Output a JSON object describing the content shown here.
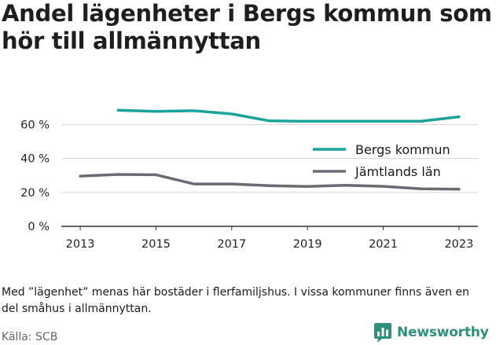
{
  "title": "Andel lägenheter i Bergs kommun som hör till allmännyttan",
  "note": "Med ”lägenhet” menas här bostäder i flerfamiljshus. I vissa kommuner finns även en del småhus i allmännyttan.",
  "source": "Källa: SCB",
  "brand": {
    "name": "Newsworthy",
    "icon": "bar-chart-logo-icon",
    "color": "#2e8f7a"
  },
  "chart_data": {
    "type": "line",
    "title": "Andel lägenheter i Bergs kommun som hör till allmännyttan",
    "xlabel": "",
    "ylabel": "",
    "xlim": [
      2012.5,
      2023.5
    ],
    "ylim": [
      0,
      70
    ],
    "x_ticks": [
      2013,
      2015,
      2017,
      2019,
      2021,
      2023
    ],
    "x_tick_labels": [
      "2013",
      "2015",
      "2017",
      "2019",
      "2021",
      "2023"
    ],
    "y_ticks": [
      0,
      20,
      40,
      60
    ],
    "y_tick_labels": [
      "0 %",
      "20 %",
      "40 %",
      "60 %"
    ],
    "grid": "horizontal",
    "legend_position": "right",
    "series": [
      {
        "name": "Bergs kommun",
        "color": "#1aa399",
        "x": [
          2014,
          2015,
          2016,
          2017,
          2018,
          2019,
          2020,
          2021,
          2022,
          2023
        ],
        "values": [
          68.5,
          67.8,
          68.2,
          66.3,
          62.2,
          62.0,
          62.0,
          62.0,
          62.0,
          64.6
        ]
      },
      {
        "name": "Jämtlands län",
        "color": "#6b6b73",
        "x": [
          2013,
          2014,
          2015,
          2016,
          2017,
          2018,
          2019,
          2020,
          2021,
          2022,
          2023
        ],
        "values": [
          29.6,
          30.6,
          30.4,
          25.0,
          25.0,
          24.0,
          23.5,
          24.2,
          23.6,
          22.1,
          21.9
        ]
      }
    ]
  }
}
